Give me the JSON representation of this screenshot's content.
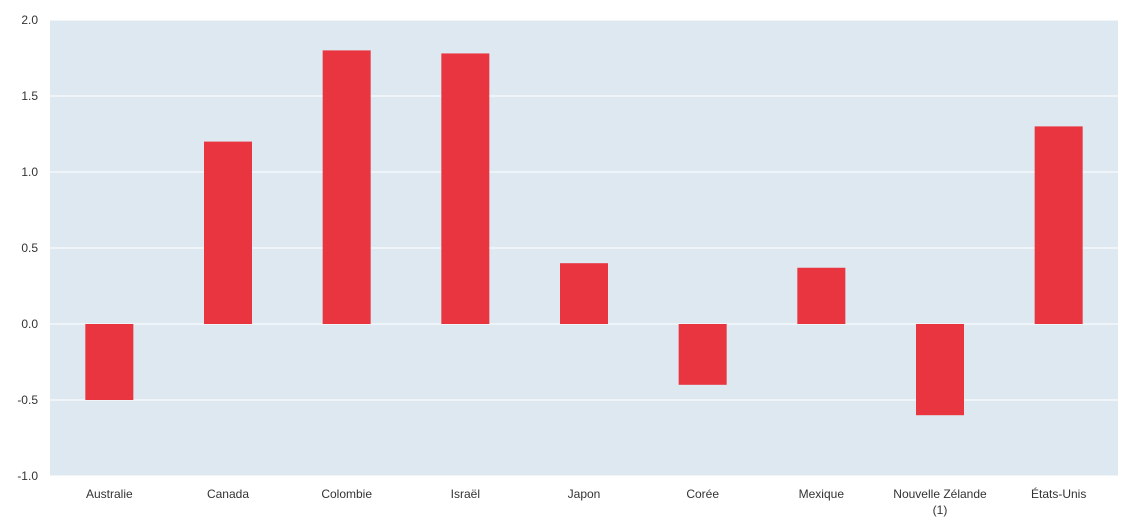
{
  "chart_data": {
    "type": "bar",
    "title": "",
    "xlabel": "",
    "ylabel": "",
    "categories": [
      "Australie",
      "Canada",
      "Colombie",
      "Israël",
      "Japon",
      "Corée",
      "Mexique",
      "Nouvelle Zélande (1)",
      "États-Unis"
    ],
    "category_lines": [
      [
        "Australie"
      ],
      [
        "Canada"
      ],
      [
        "Colombie"
      ],
      [
        "Israël"
      ],
      [
        "Japon"
      ],
      [
        "Corée"
      ],
      [
        "Mexique"
      ],
      [
        "Nouvelle Zélande",
        "(1)"
      ],
      [
        "États-Unis"
      ]
    ],
    "values": [
      -0.5,
      1.2,
      1.8,
      1.78,
      0.4,
      -0.4,
      0.37,
      -0.6,
      1.3
    ],
    "ylim": [
      -1.0,
      2.0
    ],
    "yticks": [
      -1.0,
      -0.5,
      0.0,
      0.5,
      1.0,
      1.5,
      2.0
    ],
    "ytick_labels": [
      "-1.0",
      "-0.5",
      "0.0",
      "0.5",
      "1.0",
      "1.5",
      "2.0"
    ],
    "grid": true,
    "legend": "none",
    "colors": {
      "bar": "#e8353f",
      "plot_background": "#dde8f0",
      "gridline": "#ffffff",
      "text": "#333333"
    }
  }
}
